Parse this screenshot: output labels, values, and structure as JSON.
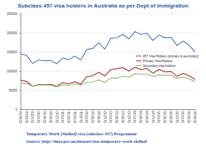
{
  "chart_data": {
    "type": "line",
    "title": "Subclass 457 visa holders in Australia as per Dept of Immigration",
    "annotations": [
      "Temporary Work (Skilled) visa (subclass 457) Programme",
      "Source: http://data.gov.au/dataset/visa-temporary-work-skilled/"
    ],
    "categories": [
      "30/06/09",
      "30/09/09",
      "31/12/09",
      "31/03/10",
      "30/06/10",
      "30/09/10",
      "31/12/10",
      "31/03/11",
      "30/06/11",
      "30/09/11",
      "31/12/11",
      "31/03/12",
      "30/06/12",
      "30/09/12",
      "31/12/12",
      "31/03/13",
      "30/06/13",
      "30/09/13",
      "31/12/13",
      "31/03/14",
      "30/06/14",
      "30/09/14",
      "31/12/14",
      "31/03/15",
      "30/06/15",
      "30/09/15",
      "31/12/15",
      "31/03/16",
      "30/06/16",
      "30/09/16"
    ],
    "series": [
      {
        "name": "457 Visa Holders (primary & secondary)",
        "color": "#4a6fc0",
        "values": [
          145000,
          141000,
          120000,
          129000,
          127000,
          128000,
          119000,
          134000,
          130000,
          139000,
          129000,
          156000,
          159000,
          174000,
          157000,
          186000,
          187000,
          196000,
          184000,
          203000,
          196000,
          199000,
          180000,
          194000,
          187000,
          188000,
          167000,
          178000,
          168000,
          150000
        ]
      },
      {
        "name": "Primary Visa Holders",
        "color": "#a8282c",
        "values": [
          76000,
          73000,
          60000,
          65000,
          64000,
          65000,
          60000,
          70000,
          67000,
          72000,
          66000,
          85000,
          88000,
          97000,
          87000,
          104000,
          106000,
          109000,
          100000,
          110000,
          104000,
          107000,
          94000,
          104000,
          98000,
          99000,
          86000,
          94000,
          88000,
          78000
        ]
      },
      {
        "name": "Secondary visa holders",
        "color": "#8db46a",
        "values": [
          69000,
          68000,
          60000,
          64000,
          63000,
          63000,
          59000,
          64000,
          63000,
          67000,
          63000,
          71000,
          71000,
          77000,
          70000,
          82000,
          81000,
          87000,
          84000,
          93000,
          92000,
          92000,
          86000,
          90000,
          89000,
          89000,
          81000,
          84000,
          80000,
          72000
        ]
      }
    ],
    "ylim": [
      0,
      250000
    ],
    "yticks": [
      0,
      50000,
      100000,
      150000,
      200000,
      250000
    ],
    "grid": true,
    "legend": "right"
  }
}
